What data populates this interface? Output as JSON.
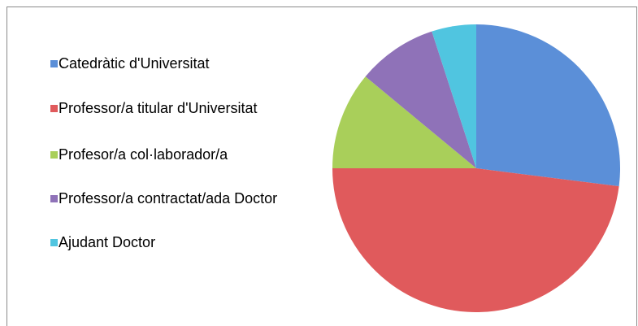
{
  "chart_data": {
    "type": "pie",
    "categories": [
      "Catedràtic d'Universitat",
      "Professor/a titular d'Universitat",
      "Profesor/a col·laborador/a",
      "Professor/a contractat/ada Doctor",
      "Ajudant Doctor"
    ],
    "values": [
      27,
      48,
      11,
      9,
      5
    ],
    "colors": [
      "#5b8fd8",
      "#e05a5c",
      "#a9cf5a",
      "#8f72b8",
      "#50c5e0"
    ],
    "legend": "left"
  }
}
